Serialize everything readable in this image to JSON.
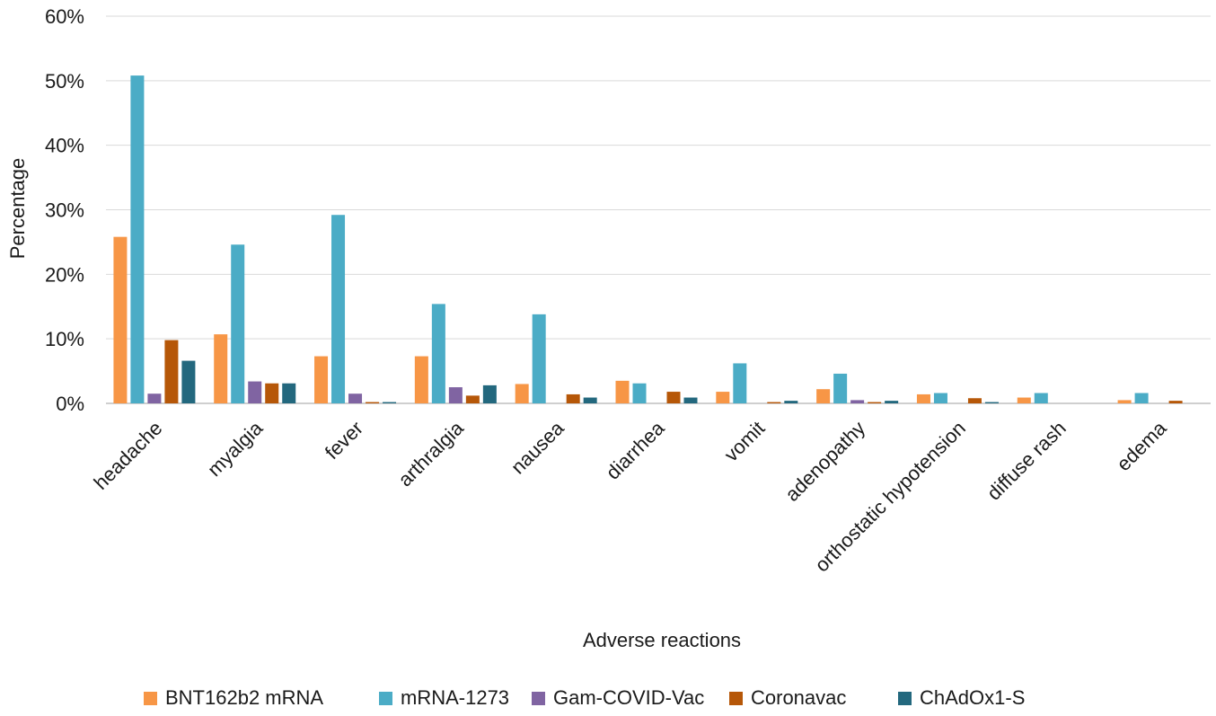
{
  "chart_data": {
    "type": "bar",
    "title": "",
    "xlabel": "Adverse reactions",
    "ylabel": "Percentage",
    "ylim": [
      0,
      60
    ],
    "y_ticks": [
      "0%",
      "10%",
      "20%",
      "30%",
      "40%",
      "50%",
      "60%"
    ],
    "y_tick_values": [
      0,
      10,
      20,
      30,
      40,
      50,
      60
    ],
    "grid": true,
    "legend_position": "bottom",
    "categories": [
      "headache",
      "myalgia",
      "fever",
      "arthralgia",
      "nausea",
      "diarrhea",
      "vomit",
      "adenopathy",
      "orthostatic hypotension",
      "diffuse rash",
      "edema"
    ],
    "series": [
      {
        "name": "BNT162b2 mRNA",
        "color": "#F79646",
        "values": [
          25.8,
          10.7,
          7.3,
          7.3,
          3.0,
          3.5,
          1.8,
          2.2,
          1.4,
          0.9,
          0.5
        ]
      },
      {
        "name": "mRNA-1273",
        "color": "#4BACC6",
        "values": [
          50.8,
          24.6,
          29.2,
          15.4,
          13.8,
          3.1,
          6.2,
          4.6,
          1.6,
          1.6,
          1.6
        ]
      },
      {
        "name": "Gam-COVID-Vac",
        "color": "#8064A2",
        "values": [
          1.5,
          3.4,
          1.5,
          2.5,
          0.0,
          0.0,
          0.0,
          0.5,
          0.0,
          0.0,
          0.0
        ]
      },
      {
        "name": "Coronavac",
        "color": "#B65708",
        "values": [
          9.8,
          3.1,
          0.2,
          1.2,
          1.4,
          1.8,
          0.2,
          0.2,
          0.8,
          0.0,
          0.4
        ]
      },
      {
        "name": "ChAdOx1-S",
        "color": "#23687E",
        "values": [
          6.6,
          3.1,
          0.2,
          2.8,
          0.9,
          0.9,
          0.4,
          0.4,
          0.2,
          0.0,
          0.0
        ]
      }
    ]
  }
}
